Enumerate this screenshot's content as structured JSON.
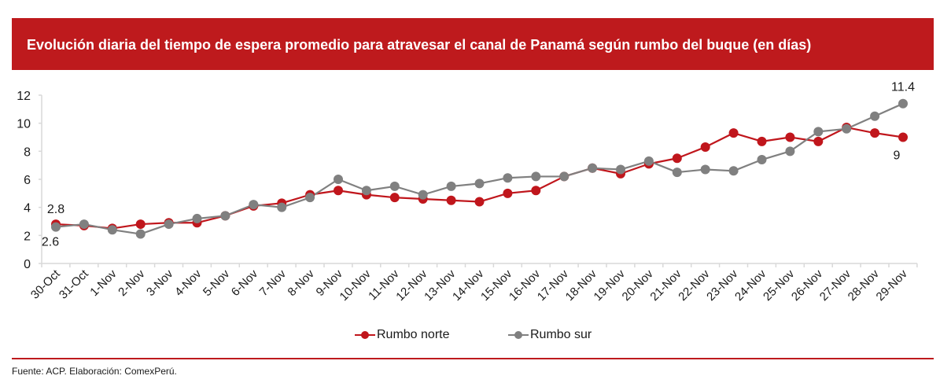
{
  "header": {
    "title": "Evolución diaria del tiempo de espera promedio para atravesar el canal de Panamá según rumbo del buque (en días)"
  },
  "footer": {
    "source": "Fuente: ACP. Elaboración: ComexPerú."
  },
  "colors": {
    "brand_red": "#be1a1d",
    "series_norte": "#c0161c",
    "series_sur": "#808080",
    "axis": "#d9d9d9"
  },
  "chart_data": {
    "type": "line",
    "title": "Evolución diaria del tiempo de espera promedio para atravesar el canal de Panamá según rumbo del buque (en días)",
    "xlabel": "",
    "ylabel": "",
    "ylim": [
      0,
      12
    ],
    "yticks": [
      "0",
      "2",
      "4",
      "6",
      "8",
      "10",
      "12"
    ],
    "grid": false,
    "legend_position": "bottom",
    "categories": [
      "30-Oct",
      "31-Oct",
      "1-Nov",
      "2-Nov",
      "3-Nov",
      "4-Nov",
      "5-Nov",
      "6-Nov",
      "7-Nov",
      "8-Nov",
      "9-Nov",
      "10-Nov",
      "11-Nov",
      "12-Nov",
      "13-Nov",
      "14-Nov",
      "15-Nov",
      "16-Nov",
      "17-Nov",
      "18-Nov",
      "19-Nov",
      "20-Nov",
      "21-Nov",
      "22-Nov",
      "23-Nov",
      "24-Nov",
      "25-Nov",
      "26-Nov",
      "27-Nov",
      "28-Nov",
      "29-Nov"
    ],
    "series": [
      {
        "name": "Rumbo norte",
        "color": "#c0161c",
        "values": [
          2.8,
          2.7,
          2.5,
          2.8,
          2.9,
          2.9,
          3.4,
          4.1,
          4.3,
          4.9,
          5.2,
          4.9,
          4.7,
          4.6,
          4.5,
          4.4,
          5.0,
          5.2,
          6.2,
          6.8,
          6.4,
          7.1,
          7.5,
          8.3,
          9.3,
          8.7,
          9.0,
          8.7,
          9.7,
          9.3,
          9.0
        ]
      },
      {
        "name": "Rumbo sur",
        "color": "#808080",
        "values": [
          2.6,
          2.8,
          2.4,
          2.1,
          2.8,
          3.2,
          3.4,
          4.2,
          4.0,
          4.7,
          6.0,
          5.2,
          5.5,
          4.9,
          5.5,
          5.7,
          6.1,
          6.2,
          6.2,
          6.8,
          6.7,
          7.3,
          6.5,
          6.7,
          6.6,
          7.4,
          8.0,
          9.4,
          9.6,
          10.5,
          11.4
        ]
      }
    ],
    "annotations": [
      {
        "series": "Rumbo norte",
        "category": "30-Oct",
        "text": "2.8"
      },
      {
        "series": "Rumbo sur",
        "category": "30-Oct",
        "text": "2.6"
      },
      {
        "series": "Rumbo sur",
        "category": "29-Nov",
        "text": "11.4"
      },
      {
        "series": "Rumbo norte",
        "category": "29-Nov",
        "text": "9"
      }
    ]
  }
}
